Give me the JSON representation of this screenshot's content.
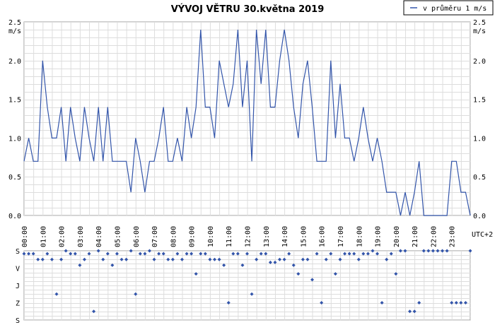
{
  "chart_data": [
    {
      "type": "line",
      "title": "VÝVOJ VĚTRU  30.května 2019",
      "y_unit": "m/s",
      "x_unit": "UTC+2",
      "ylim": [
        0,
        2.5
      ],
      "y_ticks": [
        "0.0",
        "0.5",
        "1.0",
        "1.5",
        "2.0",
        "2.5"
      ],
      "x_ticks": [
        "00:00",
        "01:00",
        "02:00",
        "03:00",
        "04:00",
        "05:00",
        "06:00",
        "07:00",
        "08:00",
        "09:00",
        "10:00",
        "11:00",
        "12:00",
        "13:00",
        "14:00",
        "15:00",
        "16:00",
        "17:00",
        "18:00",
        "19:00",
        "20:00",
        "21:00",
        "22:00",
        "23:00"
      ],
      "grid": true,
      "legend_position": "top-right",
      "series": [
        {
          "name": "v průměru 1 m/s",
          "color": "#3355aa",
          "points": [
            [
              0.0,
              0.7
            ],
            [
              0.25,
              1.0
            ],
            [
              0.5,
              0.7
            ],
            [
              0.75,
              0.7
            ],
            [
              1.0,
              2.0
            ],
            [
              1.25,
              1.4
            ],
            [
              1.5,
              1.0
            ],
            [
              1.75,
              1.0
            ],
            [
              2.0,
              1.4
            ],
            [
              2.25,
              0.7
            ],
            [
              2.5,
              1.4
            ],
            [
              2.75,
              1.0
            ],
            [
              3.0,
              0.7
            ],
            [
              3.25,
              1.4
            ],
            [
              3.5,
              1.0
            ],
            [
              3.75,
              0.7
            ],
            [
              4.0,
              1.4
            ],
            [
              4.25,
              0.7
            ],
            [
              4.5,
              1.4
            ],
            [
              4.75,
              0.7
            ],
            [
              5.0,
              0.7
            ],
            [
              5.25,
              0.7
            ],
            [
              5.5,
              0.7
            ],
            [
              5.75,
              0.3
            ],
            [
              6.0,
              1.0
            ],
            [
              6.25,
              0.7
            ],
            [
              6.5,
              0.3
            ],
            [
              6.75,
              0.7
            ],
            [
              7.0,
              0.7
            ],
            [
              7.25,
              1.0
            ],
            [
              7.5,
              1.4
            ],
            [
              7.75,
              0.7
            ],
            [
              8.0,
              0.7
            ],
            [
              8.25,
              1.0
            ],
            [
              8.5,
              0.7
            ],
            [
              8.75,
              1.4
            ],
            [
              9.0,
              1.0
            ],
            [
              9.25,
              1.4
            ],
            [
              9.5,
              2.4
            ],
            [
              9.75,
              1.4
            ],
            [
              10.0,
              1.4
            ],
            [
              10.25,
              1.0
            ],
            [
              10.5,
              2.0
            ],
            [
              10.75,
              1.7
            ],
            [
              11.0,
              1.4
            ],
            [
              11.25,
              1.7
            ],
            [
              11.5,
              2.4
            ],
            [
              11.75,
              1.4
            ],
            [
              12.0,
              2.0
            ],
            [
              12.25,
              0.7
            ],
            [
              12.5,
              2.4
            ],
            [
              12.75,
              1.7
            ],
            [
              13.0,
              2.4
            ],
            [
              13.25,
              1.4
            ],
            [
              13.5,
              1.4
            ],
            [
              13.75,
              2.0
            ],
            [
              14.0,
              2.4
            ],
            [
              14.25,
              2.0
            ],
            [
              14.5,
              1.4
            ],
            [
              14.75,
              1.0
            ],
            [
              15.0,
              1.7
            ],
            [
              15.25,
              2.0
            ],
            [
              15.5,
              1.4
            ],
            [
              15.75,
              0.7
            ],
            [
              16.0,
              0.7
            ],
            [
              16.25,
              0.7
            ],
            [
              16.5,
              2.0
            ],
            [
              16.75,
              1.0
            ],
            [
              17.0,
              1.7
            ],
            [
              17.25,
              1.0
            ],
            [
              17.5,
              1.0
            ],
            [
              17.75,
              0.7
            ],
            [
              18.0,
              1.0
            ],
            [
              18.25,
              1.4
            ],
            [
              18.5,
              1.0
            ],
            [
              18.75,
              0.7
            ],
            [
              19.0,
              1.0
            ],
            [
              19.25,
              0.7
            ],
            [
              19.5,
              0.3
            ],
            [
              19.75,
              0.3
            ],
            [
              20.0,
              0.3
            ],
            [
              20.25,
              0.0
            ],
            [
              20.5,
              0.3
            ],
            [
              20.75,
              0.0
            ],
            [
              21.0,
              0.3
            ],
            [
              21.25,
              0.7
            ],
            [
              21.5,
              0.0
            ],
            [
              21.75,
              0.0
            ],
            [
              22.0,
              0.0
            ],
            [
              22.25,
              0.0
            ],
            [
              22.5,
              0.0
            ],
            [
              22.75,
              0.0
            ],
            [
              23.0,
              0.7
            ],
            [
              23.25,
              0.7
            ],
            [
              23.5,
              0.3
            ],
            [
              23.75,
              0.3
            ],
            [
              24.0,
              0.0
            ]
          ]
        }
      ]
    },
    {
      "type": "scatter",
      "title": "",
      "y_categories": [
        "S",
        "V",
        "J",
        "Z",
        "S"
      ],
      "y_range_deg": [
        0,
        360
      ],
      "grid": true,
      "series": [
        {
          "name": "",
          "color": "#3355aa",
          "points": [
            [
              0.0,
              15
            ],
            [
              0.25,
              15
            ],
            [
              0.5,
              15
            ],
            [
              0.75,
              45
            ],
            [
              1.0,
              45
            ],
            [
              1.25,
              15
            ],
            [
              1.5,
              45
            ],
            [
              1.75,
              225
            ],
            [
              2.0,
              45
            ],
            [
              2.25,
              0
            ],
            [
              2.5,
              15
            ],
            [
              2.75,
              15
            ],
            [
              3.0,
              75
            ],
            [
              3.25,
              45
            ],
            [
              3.5,
              15
            ],
            [
              3.75,
              315
            ],
            [
              4.0,
              0
            ],
            [
              4.25,
              45
            ],
            [
              4.5,
              15
            ],
            [
              4.75,
              75
            ],
            [
              5.0,
              15
            ],
            [
              5.25,
              45
            ],
            [
              5.5,
              45
            ],
            [
              5.75,
              0
            ],
            [
              6.0,
              225
            ],
            [
              6.25,
              15
            ],
            [
              6.5,
              15
            ],
            [
              6.75,
              0
            ],
            [
              7.0,
              45
            ],
            [
              7.25,
              15
            ],
            [
              7.5,
              15
            ],
            [
              7.75,
              45
            ],
            [
              8.0,
              45
            ],
            [
              8.25,
              15
            ],
            [
              8.5,
              45
            ],
            [
              8.75,
              15
            ],
            [
              9.0,
              15
            ],
            [
              9.25,
              120
            ],
            [
              9.5,
              15
            ],
            [
              9.75,
              15
            ],
            [
              10.0,
              45
            ],
            [
              10.25,
              45
            ],
            [
              10.5,
              45
            ],
            [
              10.75,
              75
            ],
            [
              11.0,
              270
            ],
            [
              11.25,
              15
            ],
            [
              11.5,
              15
            ],
            [
              11.75,
              75
            ],
            [
              12.0,
              15
            ],
            [
              12.25,
              225
            ],
            [
              12.5,
              45
            ],
            [
              12.75,
              15
            ],
            [
              13.0,
              15
            ],
            [
              13.25,
              60
            ],
            [
              13.5,
              60
            ],
            [
              13.75,
              45
            ],
            [
              14.0,
              45
            ],
            [
              14.25,
              15
            ],
            [
              14.5,
              75
            ],
            [
              14.75,
              120
            ],
            [
              15.0,
              45
            ],
            [
              15.25,
              45
            ],
            [
              15.5,
              150
            ],
            [
              15.75,
              15
            ],
            [
              16.0,
              270
            ],
            [
              16.25,
              45
            ],
            [
              16.5,
              15
            ],
            [
              16.75,
              120
            ],
            [
              17.0,
              45
            ],
            [
              17.25,
              15
            ],
            [
              17.5,
              15
            ],
            [
              17.75,
              15
            ],
            [
              18.0,
              45
            ],
            [
              18.25,
              15
            ],
            [
              18.5,
              15
            ],
            [
              18.75,
              0
            ],
            [
              19.0,
              15
            ],
            [
              19.25,
              270
            ],
            [
              19.5,
              45
            ],
            [
              19.75,
              15
            ],
            [
              20.0,
              120
            ],
            [
              20.25,
              0
            ],
            [
              20.5,
              0
            ],
            [
              20.75,
              315
            ],
            [
              21.0,
              315
            ],
            [
              21.25,
              270
            ],
            [
              21.5,
              0
            ],
            [
              21.75,
              0
            ],
            [
              22.0,
              0
            ],
            [
              22.25,
              0
            ],
            [
              22.5,
              0
            ],
            [
              22.75,
              0
            ],
            [
              23.0,
              270
            ],
            [
              23.25,
              270
            ],
            [
              23.5,
              270
            ],
            [
              23.75,
              270
            ],
            [
              24.0,
              0
            ]
          ]
        }
      ]
    }
  ]
}
